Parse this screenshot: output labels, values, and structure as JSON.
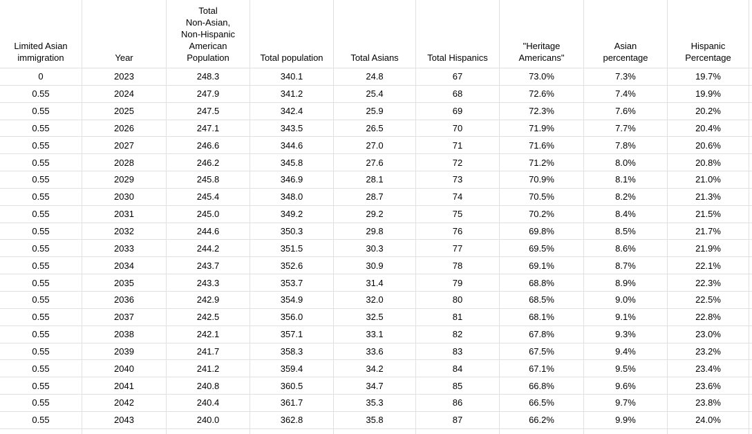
{
  "sheet": {
    "background_color": "#ffffff",
    "gridline_color": "#e0e0e0",
    "text_color": "#000000",
    "columns": [
      "Limited Asian\nimmigration",
      "Year",
      "Total\nNon-Asian,\nNon-Hispanic\nAmerican\nPopulation",
      "Total population",
      "Total Asians",
      "Total Hispanics",
      "\"Heritage\nAmericans\"",
      "Asian\npercentage",
      "Hispanic\nPercentage"
    ],
    "rows": [
      [
        "0",
        "2023",
        "248.3",
        "340.1",
        "24.8",
        "67",
        "73.0%",
        "7.3%",
        "19.7%"
      ],
      [
        "0.55",
        "2024",
        "247.9",
        "341.2",
        "25.4",
        "68",
        "72.6%",
        "7.4%",
        "19.9%"
      ],
      [
        "0.55",
        "2025",
        "247.5",
        "342.4",
        "25.9",
        "69",
        "72.3%",
        "7.6%",
        "20.2%"
      ],
      [
        "0.55",
        "2026",
        "247.1",
        "343.5",
        "26.5",
        "70",
        "71.9%",
        "7.7%",
        "20.4%"
      ],
      [
        "0.55",
        "2027",
        "246.6",
        "344.6",
        "27.0",
        "71",
        "71.6%",
        "7.8%",
        "20.6%"
      ],
      [
        "0.55",
        "2028",
        "246.2",
        "345.8",
        "27.6",
        "72",
        "71.2%",
        "8.0%",
        "20.8%"
      ],
      [
        "0.55",
        "2029",
        "245.8",
        "346.9",
        "28.1",
        "73",
        "70.9%",
        "8.1%",
        "21.0%"
      ],
      [
        "0.55",
        "2030",
        "245.4",
        "348.0",
        "28.7",
        "74",
        "70.5%",
        "8.2%",
        "21.3%"
      ],
      [
        "0.55",
        "2031",
        "245.0",
        "349.2",
        "29.2",
        "75",
        "70.2%",
        "8.4%",
        "21.5%"
      ],
      [
        "0.55",
        "2032",
        "244.6",
        "350.3",
        "29.8",
        "76",
        "69.8%",
        "8.5%",
        "21.7%"
      ],
      [
        "0.55",
        "2033",
        "244.2",
        "351.5",
        "30.3",
        "77",
        "69.5%",
        "8.6%",
        "21.9%"
      ],
      [
        "0.55",
        "2034",
        "243.7",
        "352.6",
        "30.9",
        "78",
        "69.1%",
        "8.7%",
        "22.1%"
      ],
      [
        "0.55",
        "2035",
        "243.3",
        "353.7",
        "31.4",
        "79",
        "68.8%",
        "8.9%",
        "22.3%"
      ],
      [
        "0.55",
        "2036",
        "242.9",
        "354.9",
        "32.0",
        "80",
        "68.5%",
        "9.0%",
        "22.5%"
      ],
      [
        "0.55",
        "2037",
        "242.5",
        "356.0",
        "32.5",
        "81",
        "68.1%",
        "9.1%",
        "22.8%"
      ],
      [
        "0.55",
        "2038",
        "242.1",
        "357.1",
        "33.1",
        "82",
        "67.8%",
        "9.3%",
        "23.0%"
      ],
      [
        "0.55",
        "2039",
        "241.7",
        "358.3",
        "33.6",
        "83",
        "67.5%",
        "9.4%",
        "23.2%"
      ],
      [
        "0.55",
        "2040",
        "241.2",
        "359.4",
        "34.2",
        "84",
        "67.1%",
        "9.5%",
        "23.4%"
      ],
      [
        "0.55",
        "2041",
        "240.8",
        "360.5",
        "34.7",
        "85",
        "66.8%",
        "9.6%",
        "23.6%"
      ],
      [
        "0.55",
        "2042",
        "240.4",
        "361.7",
        "35.3",
        "86",
        "66.5%",
        "9.7%",
        "23.8%"
      ],
      [
        "0.55",
        "2043",
        "240.0",
        "362.8",
        "35.8",
        "87",
        "66.2%",
        "9.9%",
        "24.0%"
      ]
    ]
  }
}
